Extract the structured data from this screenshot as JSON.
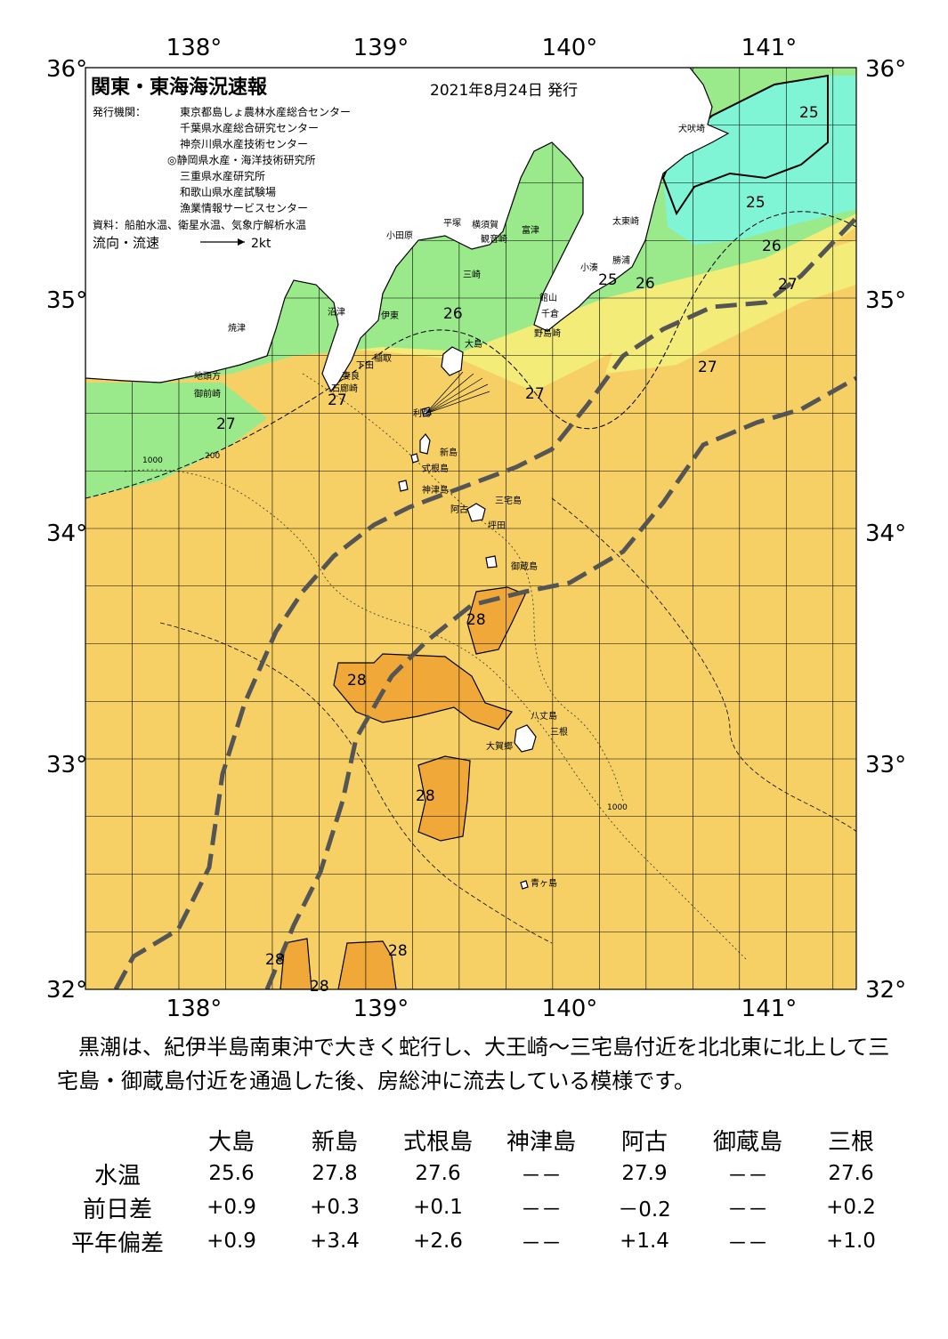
{
  "map": {
    "title": "関東・東海海況速報",
    "date": "2021年8月24日 発行",
    "issuer_label": "発行機関：",
    "issuers": [
      "東京都島しょ農林水産総合センター",
      "千葉県水産総合研究センター",
      "神奈川県水産技術センター",
      "◎静岡県水産・海洋技術研究所",
      "三重県水産研究所",
      "和歌山県水産試験場",
      "漁業情報サービスセンター"
    ],
    "sources": "資料：船舶水温、衛星水温、気象庁解析水温",
    "flow_legend": "流向・流速",
    "flow_scale": "2kt",
    "lon_labels": [
      "138°",
      "139°",
      "140°",
      "141°"
    ],
    "lat_labels": [
      "36°",
      "35°",
      "34°",
      "33°",
      "32°"
    ],
    "place_names": [
      {
        "id": "inubosaki",
        "text": "犬吠埼"
      },
      {
        "id": "taitozaki",
        "text": "太東崎"
      },
      {
        "id": "katsuura",
        "text": "勝浦"
      },
      {
        "id": "kominato",
        "text": "小湊"
      },
      {
        "id": "futtsu",
        "text": "富津"
      },
      {
        "id": "yokosuka",
        "text": "横須賀"
      },
      {
        "id": "kannonzaki",
        "text": "観音崎"
      },
      {
        "id": "hiratsuka",
        "text": "平塚"
      },
      {
        "id": "odawara",
        "text": "小田原"
      },
      {
        "id": "misaki",
        "text": "三崎"
      },
      {
        "id": "tateyama",
        "text": "館山"
      },
      {
        "id": "chikura",
        "text": "千倉"
      },
      {
        "id": "nojimazaki",
        "text": "野島崎"
      },
      {
        "id": "numazu",
        "text": "沼津"
      },
      {
        "id": "ito",
        "text": "伊東"
      },
      {
        "id": "inatori",
        "text": "稲取"
      },
      {
        "id": "shimoda",
        "text": "下田"
      },
      {
        "id": "mera",
        "text": "妻良"
      },
      {
        "id": "iroozaki",
        "text": "石廊崎"
      },
      {
        "id": "yaizu",
        "text": "焼津"
      },
      {
        "id": "jitogata",
        "text": "地頭方"
      },
      {
        "id": "omaezaki",
        "text": "御前崎"
      },
      {
        "id": "oshima",
        "text": "大島"
      },
      {
        "id": "toshima",
        "text": "利島"
      },
      {
        "id": "niijima",
        "text": "新島"
      },
      {
        "id": "shikinejima",
        "text": "式根島"
      },
      {
        "id": "kozushima",
        "text": "神津島"
      },
      {
        "id": "miyakejima",
        "text": "三宅島"
      },
      {
        "id": "ako",
        "text": "阿古"
      },
      {
        "id": "tsubota",
        "text": "坪田"
      },
      {
        "id": "mikurajima",
        "text": "御蔵島"
      },
      {
        "id": "hachijojima",
        "text": "八丈島"
      },
      {
        "id": "mitsune",
        "text": "三根"
      },
      {
        "id": "okago",
        "text": "大賀郷"
      },
      {
        "id": "aogashima",
        "text": "青ヶ島"
      }
    ],
    "isotherm_labels": [
      "25",
      "25",
      "26",
      "25",
      "26",
      "26",
      "27",
      "27",
      "27",
      "27",
      "27",
      "28",
      "28",
      "28",
      "28",
      "28",
      "28"
    ],
    "depth_labels": [
      "200",
      "1000"
    ],
    "colors": {
      "temp_25": "#7ff5d6",
      "temp_26": "#9ae98a",
      "temp_27": "#f3ec78",
      "temp_27_5": "#f6d064",
      "temp_28": "#f0a838",
      "land": "#ffffff",
      "kuroshio_axis": "#555555",
      "grid": "#000000"
    }
  },
  "summary": "黒潮は、紀伊半島南東沖で大きく蛇行し、大王崎～三宅島付近を北北東に北上して三宅島・御蔵島付近を通過した後、房総沖に流去している模様です。",
  "table": {
    "columns": [
      "大島",
      "新島",
      "式根島",
      "神津島",
      "阿古",
      "御蔵島",
      "三根"
    ],
    "rows": [
      {
        "label": "水温",
        "values": [
          "25.6",
          "27.8",
          "27.6",
          "－－",
          "27.9",
          "－－",
          "27.6"
        ]
      },
      {
        "label": "前日差",
        "values": [
          "+0.9",
          "+0.3",
          "+0.1",
          "－－",
          "－0.2",
          "－－",
          "+0.2"
        ]
      },
      {
        "label": "平年偏差",
        "values": [
          "+0.9",
          "+3.4",
          "+2.6",
          "－－",
          "+1.4",
          "－－",
          "+1.0"
        ]
      }
    ]
  }
}
